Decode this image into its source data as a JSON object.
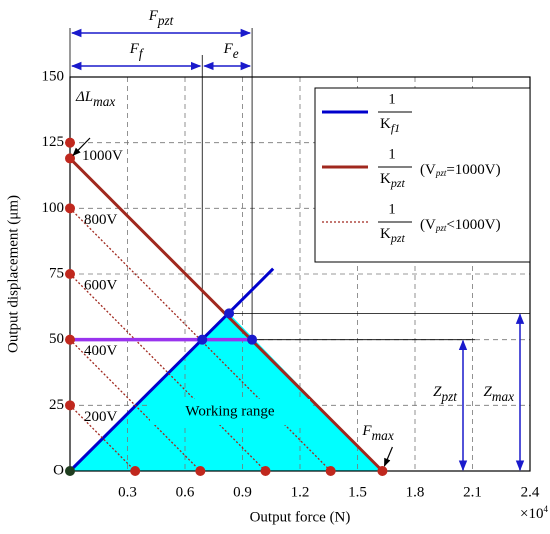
{
  "chart_data": {
    "type": "line",
    "x_label": "Output force (N)",
    "y_label": "Output displacement (μm)",
    "x_multiplier": {
      "main": "×10",
      "sup": "4"
    },
    "xlim": [
      0,
      2.4
    ],
    "ylim": [
      0,
      150
    ],
    "xticks": [
      0.3,
      0.6,
      0.9,
      1.2,
      1.5,
      1.8,
      2.1,
      2.4
    ],
    "yticks": [
      {
        "value": 0,
        "label": "O"
      },
      25,
      50,
      75,
      100,
      125,
      150
    ],
    "grid": true,
    "grid_style": "dashed",
    "region": {
      "label": "Working range",
      "color": "#00ffff",
      "x": [
        0,
        0.83,
        1.63
      ],
      "y": [
        0,
        60,
        0
      ]
    },
    "series": [
      {
        "color": "#0000cc",
        "style": "solid",
        "x": [
          0,
          1.06
        ],
        "values": [
          0,
          77
        ]
      },
      {
        "color": "#a0281e",
        "style": "solid",
        "label": "1000V",
        "x": [
          0,
          1.63
        ],
        "values": [
          119,
          0
        ]
      },
      {
        "color": "#a0281e",
        "style": "dotted",
        "label": "800V",
        "x": [
          0,
          1.36
        ],
        "values": [
          100,
          0
        ]
      },
      {
        "color": "#a0281e",
        "style": "dotted",
        "label": "600V",
        "x": [
          0,
          1.02
        ],
        "values": [
          75,
          0
        ]
      },
      {
        "color": "#a0281e",
        "style": "dotted",
        "label": "400V",
        "x": [
          0,
          0.68
        ],
        "values": [
          50,
          0
        ]
      },
      {
        "color": "#a0281e",
        "style": "dotted",
        "label": "200V",
        "x": [
          0,
          0.34
        ],
        "values": [
          25,
          0
        ]
      },
      {
        "color": "#9933ee",
        "style": "thick",
        "x": [
          0,
          0.95
        ],
        "values": [
          50,
          50
        ]
      }
    ],
    "points": [
      {
        "x": 0.69,
        "y": 50,
        "color": "#1a1acc"
      },
      {
        "x": 0.95,
        "y": 50,
        "color": "#1a1acc"
      },
      {
        "x": 0.83,
        "y": 60,
        "color": "#1a1acc"
      },
      {
        "x": 0,
        "y": 25,
        "color": "#c0281e"
      },
      {
        "x": 0,
        "y": 50,
        "color": "#c0281e"
      },
      {
        "x": 0,
        "y": 75,
        "color": "#c0281e"
      },
      {
        "x": 0,
        "y": 100,
        "color": "#c0281e"
      },
      {
        "x": 0,
        "y": 119,
        "color": "#c0281e"
      },
      {
        "x": 0,
        "y": 125,
        "color": "#c0281e"
      },
      {
        "x": 0.34,
        "y": 0,
        "color": "#c0281e"
      },
      {
        "x": 0.68,
        "y": 0,
        "color": "#c0281e"
      },
      {
        "x": 1.02,
        "y": 0,
        "color": "#c0281e"
      },
      {
        "x": 1.36,
        "y": 0,
        "color": "#c0281e"
      },
      {
        "x": 1.63,
        "y": 0,
        "color": "#c0281e"
      },
      {
        "x": 0,
        "y": 0,
        "color": "#1f3d1f"
      }
    ],
    "legend": [
      {
        "num": "1",
        "den": "K",
        "sub": "f1",
        "color": "#0000cc",
        "style": "solid"
      },
      {
        "num": "1",
        "den": "K",
        "sub": "pzt",
        "note": {
          "pre": "(V",
          "sub": "pzt",
          "post": "=1000V)"
        },
        "color": "#a0281e",
        "style": "solid"
      },
      {
        "num": "1",
        "den": "K",
        "sub": "pzt",
        "note": {
          "pre": "(V",
          "sub": "pzt",
          "post": "<1000V)"
        },
        "color": "#a0281e",
        "style": "dotted"
      }
    ],
    "annotations": {
      "F_pzt": {
        "main": "F",
        "sub": "pzt"
      },
      "F_f": {
        "main": "F",
        "sub": "f"
      },
      "F_e": {
        "main": "F",
        "sub": "e"
      },
      "dL_max": {
        "main": "ΔL",
        "sub": "max"
      },
      "F_max": {
        "main": "F",
        "sub": "max"
      },
      "Z_pzt": {
        "main": "Z",
        "sub": "pzt"
      },
      "Z_max": {
        "main": "Z",
        "sub": "max"
      }
    }
  }
}
